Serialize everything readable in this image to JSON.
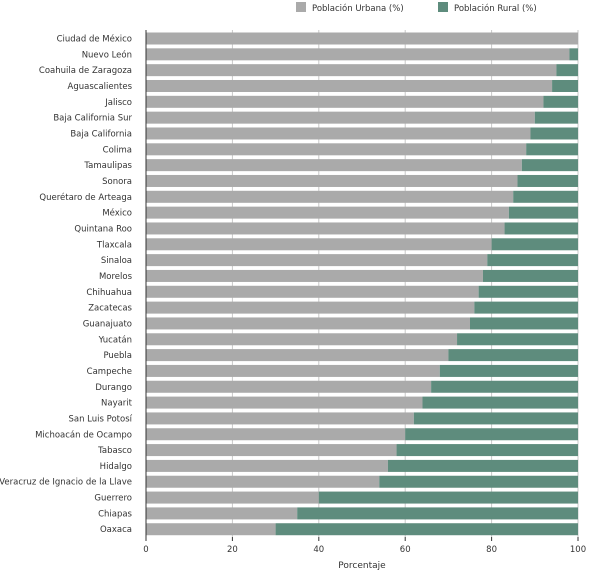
{
  "chart_data": {
    "type": "bar",
    "orientation": "horizontal",
    "stacked": true,
    "categories": [
      "Ciudad de México",
      "Nuevo León",
      "Coahuila de Zaragoza",
      "Aguascalientes",
      "Jalisco",
      "Baja California Sur",
      "Baja California",
      "Colima",
      "Tamaulipas",
      "Sonora",
      "Querétaro de Arteaga",
      "México",
      "Quintana Roo",
      "Tlaxcala",
      "Sinaloa",
      "Morelos",
      "Chihuahua",
      "Zacatecas",
      "Guanajuato",
      "Yucatán",
      "Puebla",
      "Campeche",
      "Durango",
      "Nayarit",
      "San Luis Potosí",
      "Michoacán de Ocampo",
      "Tabasco",
      "Hidalgo",
      "Veracruz de Ignacio de la Llave",
      "Guerrero",
      "Chiapas",
      "Oaxaca"
    ],
    "series": [
      {
        "name": "Población Urbana (%)",
        "color": "#aaaaaa",
        "values": [
          100,
          98,
          95,
          94,
          92,
          90,
          89,
          88,
          87,
          86,
          85,
          84,
          83,
          80,
          79,
          78,
          77,
          76,
          75,
          72,
          70,
          68,
          66,
          64,
          62,
          60,
          58,
          56,
          54,
          40,
          35,
          30
        ]
      },
      {
        "name": "Población Rural (%)",
        "color": "#5e8c7d",
        "values": [
          0,
          2,
          5,
          6,
          8,
          10,
          11,
          12,
          13,
          14,
          15,
          16,
          17,
          20,
          21,
          22,
          23,
          24,
          25,
          28,
          30,
          32,
          34,
          36,
          38,
          40,
          42,
          44,
          46,
          60,
          65,
          70
        ]
      }
    ],
    "xlabel": "Porcentaje",
    "ylabel": "",
    "xlim": [
      0,
      100
    ],
    "xticks": [
      0,
      20,
      40,
      60,
      80,
      100
    ],
    "grid": true,
    "legend_position": "top-right"
  }
}
